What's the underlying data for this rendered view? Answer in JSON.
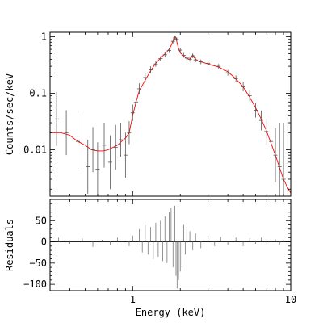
{
  "chart_data": [
    {
      "type": "line",
      "panel": "spectrum",
      "xscale": "log",
      "yscale": "log",
      "xlim": [
        0.3,
        10
      ],
      "ylim": [
        0.0015,
        1.2
      ],
      "ylabel": "Counts/sec/keV",
      "yticks": [
        0.01,
        0.1,
        1
      ],
      "yticklabels": [
        "0.01",
        "0.1",
        "1"
      ],
      "series": [
        {
          "role": "model",
          "color": "#ff0000",
          "x": [
            0.3,
            0.35,
            0.4,
            0.45,
            0.5,
            0.55,
            0.6,
            0.65,
            0.7,
            0.75,
            0.8,
            0.85,
            0.9,
            0.95,
            1.0,
            1.05,
            1.1,
            1.2,
            1.3,
            1.4,
            1.5,
            1.6,
            1.7,
            1.75,
            1.8,
            1.83,
            1.86,
            1.88,
            1.91,
            1.95,
            2.0,
            2.1,
            2.2,
            2.3,
            2.35,
            2.4,
            2.45,
            2.5,
            2.6,
            2.8,
            3.0,
            3.5,
            4.0,
            4.5,
            5.0,
            5.5,
            6.0,
            6.5,
            7.0,
            7.5,
            8.0,
            8.5,
            9.0,
            9.5,
            10.0
          ],
          "y": [
            0.02,
            0.02,
            0.018,
            0.014,
            0.012,
            0.01,
            0.0095,
            0.0095,
            0.01,
            0.011,
            0.012,
            0.014,
            0.016,
            0.02,
            0.04,
            0.07,
            0.11,
            0.17,
            0.25,
            0.34,
            0.42,
            0.5,
            0.6,
            0.7,
            0.85,
            0.98,
            1.0,
            0.93,
            0.78,
            0.62,
            0.52,
            0.46,
            0.41,
            0.4,
            0.43,
            0.48,
            0.43,
            0.4,
            0.37,
            0.35,
            0.33,
            0.29,
            0.24,
            0.18,
            0.13,
            0.085,
            0.055,
            0.035,
            0.022,
            0.013,
            0.008,
            0.0048,
            0.003,
            0.0022,
            0.0017
          ]
        },
        {
          "role": "data",
          "color": "#555555",
          "x": [
            0.33,
            0.38,
            0.45,
            0.52,
            0.56,
            0.6,
            0.66,
            0.72,
            0.78,
            0.84,
            0.9,
            0.95,
            1.0,
            1.05,
            1.1,
            1.2,
            1.3,
            1.4,
            1.5,
            1.6,
            1.7,
            1.8,
            1.85,
            1.9,
            2.0,
            2.1,
            2.2,
            2.3,
            2.4,
            2.5,
            2.7,
            3.0,
            3.5,
            4.0,
            4.5,
            5.0,
            5.5,
            6.0,
            6.5,
            7.0,
            7.5,
            8.0,
            8.5,
            9.0,
            9.5
          ],
          "y": [
            0.035,
            0.02,
            0.014,
            0.005,
            0.01,
            0.0045,
            0.012,
            0.006,
            0.011,
            0.015,
            0.008,
            0.02,
            0.045,
            0.07,
            0.12,
            0.19,
            0.26,
            0.33,
            0.41,
            0.48,
            0.57,
            0.83,
            0.95,
            0.9,
            0.58,
            0.47,
            0.42,
            0.4,
            0.46,
            0.39,
            0.36,
            0.34,
            0.3,
            0.23,
            0.18,
            0.13,
            0.09,
            0.05,
            0.033,
            0.021,
            0.014,
            0.008,
            0.005,
            0.003,
            0.0022
          ],
          "yerr_factor": [
            3.0,
            2.5,
            3.0,
            3.0,
            2.5,
            3.0,
            2.5,
            3.0,
            2.5,
            2.0,
            2.5,
            1.6,
            1.4,
            1.3,
            1.25,
            1.18,
            1.15,
            1.12,
            1.1,
            1.1,
            1.1,
            1.08,
            1.08,
            1.08,
            1.1,
            1.1,
            1.1,
            1.1,
            1.1,
            1.1,
            1.1,
            1.1,
            1.1,
            1.12,
            1.15,
            1.2,
            1.25,
            1.35,
            1.5,
            1.7,
            2.0,
            3.0,
            6.0,
            10.0,
            20.0
          ]
        }
      ]
    },
    {
      "type": "line",
      "panel": "residuals",
      "xscale": "log",
      "xlim": [
        0.3,
        10
      ],
      "ylim": [
        -115,
        100
      ],
      "xlabel": "Energy (keV)",
      "ylabel": "Residuals",
      "xticks": [
        1,
        10
      ],
      "xticklabels": [
        "1",
        "10"
      ],
      "yticks": [
        -100,
        -50,
        0,
        50
      ],
      "yticklabels": [
        "−100",
        "−50",
        "0",
        "50"
      ],
      "zero_line": true,
      "series": [
        {
          "role": "residuals",
          "color": "#777777",
          "x": [
            0.34,
            0.4,
            0.48,
            0.56,
            0.64,
            0.72,
            0.8,
            0.88,
            0.95,
            1.0,
            1.05,
            1.1,
            1.15,
            1.2,
            1.25,
            1.3,
            1.35,
            1.4,
            1.45,
            1.5,
            1.55,
            1.6,
            1.65,
            1.7,
            1.75,
            1.8,
            1.85,
            1.88,
            1.91,
            1.95,
            2.0,
            2.05,
            2.1,
            2.15,
            2.2,
            2.3,
            2.4,
            2.5,
            2.7,
            3.0,
            3.3,
            3.6,
            4.0,
            4.5,
            5.0,
            5.5,
            6.0,
            6.5,
            7.0,
            7.5,
            8.0,
            8.5,
            9.0,
            9.5
          ],
          "y": [
            10,
            -5,
            8,
            -12,
            5,
            -8,
            10,
            6,
            -10,
            15,
            -20,
            30,
            -25,
            40,
            -30,
            35,
            -40,
            45,
            -35,
            50,
            -45,
            60,
            -50,
            70,
            80,
            -60,
            85,
            -80,
            -110,
            -90,
            -70,
            -60,
            40,
            -30,
            35,
            25,
            -20,
            20,
            -15,
            15,
            -10,
            12,
            -8,
            10,
            -10,
            8,
            -5,
            10,
            -8,
            5,
            6,
            -6,
            4,
            5
          ]
        }
      ]
    }
  ]
}
